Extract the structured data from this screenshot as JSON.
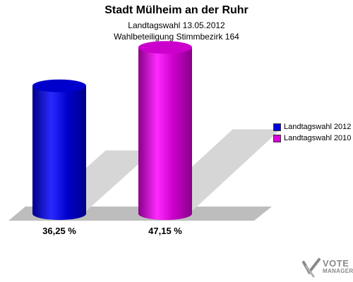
{
  "chart_data": {
    "type": "bar",
    "title": "Stadt Mülheim an der Ruhr",
    "subtitle": [
      "Landtagswahl 13.05.2012",
      "Wahlbeteiligung Stimmbezirk 164"
    ],
    "categories": [
      "Landtagswahl 2012",
      "Landtagswahl 2010"
    ],
    "values": [
      36.25,
      47.15
    ],
    "value_labels": [
      "36,25 %",
      "47,15 %"
    ],
    "colors": [
      "#0000dd",
      "#dd00dd"
    ],
    "ylim": [
      0,
      50
    ],
    "legend": {
      "placement": "right",
      "entries": [
        {
          "label": "Landtagswahl 2012",
          "color": "#0000dd"
        },
        {
          "label": "Landtagswahl 2010",
          "color": "#dd00dd"
        }
      ]
    },
    "grid": false
  },
  "logo": {
    "line1": "VOTE",
    "line2": "MANAGER"
  }
}
